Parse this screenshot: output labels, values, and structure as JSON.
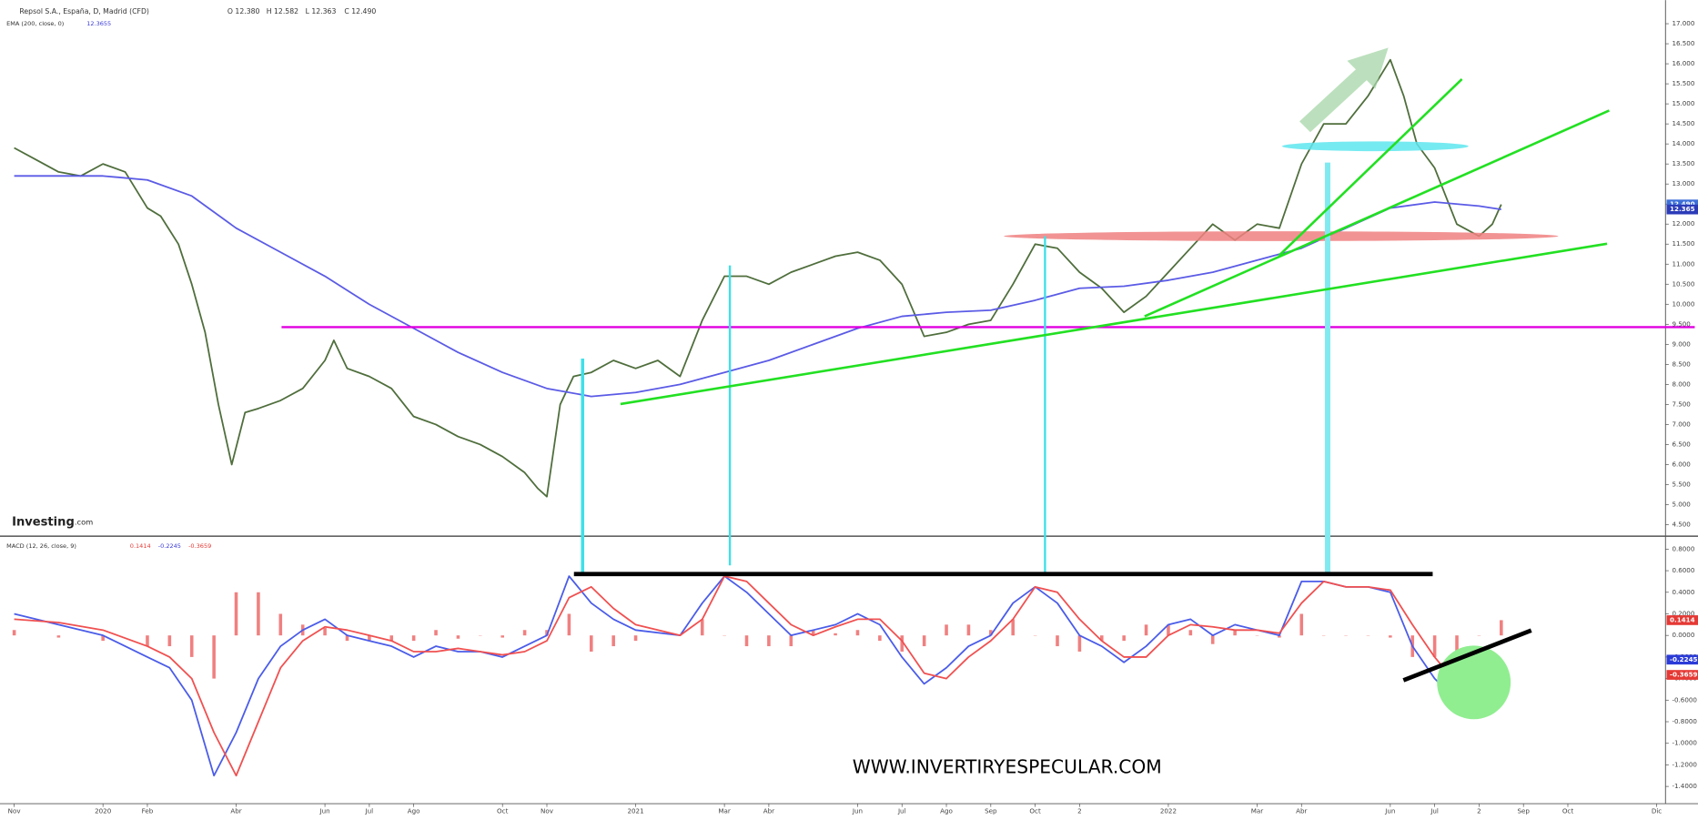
{
  "header": {
    "title": "Repsol S.A., España, D, Madrid (CFD)",
    "ohlc": [
      "O 12.380",
      "H 12.582",
      "L 12.363",
      "C 12.490"
    ],
    "ema_label": "EMA (200, close, 0)",
    "ema_value": "12.3655",
    "macd_label": "MACD (12, 26, close, 9)",
    "macd_values": [
      "0.1414",
      "-0.2245",
      "-0.3659"
    ]
  },
  "logo": [
    "Investing",
    ".com"
  ],
  "watermark": "WWW.INVERTIRYESPECULAR.COM",
  "chart_data": [
    {
      "type": "line",
      "xlim": [
        -0.32,
        37.2
      ],
      "ylim": [
        4.24,
        17.59
      ],
      "yticks": [
        {
          "value": 4.5,
          "label": "4.500"
        },
        {
          "value": 5,
          "label": "5.000"
        },
        {
          "value": 5.5,
          "label": "5.500"
        },
        {
          "value": 6,
          "label": "6.000"
        },
        {
          "value": 6.5,
          "label": "6.500"
        },
        {
          "value": 7,
          "label": "7.000"
        },
        {
          "value": 7.5,
          "label": "7.500"
        },
        {
          "value": 8,
          "label": "8.000"
        },
        {
          "value": 8.5,
          "label": "8.500"
        },
        {
          "value": 9,
          "label": "9.000"
        },
        {
          "value": 9.5,
          "label": "9.500"
        },
        {
          "value": 10,
          "label": "10.000"
        },
        {
          "value": 10.5,
          "label": "10.500"
        },
        {
          "value": 11,
          "label": "11.000"
        },
        {
          "value": 11.5,
          "label": "11.500"
        },
        {
          "value": 12,
          "label": "12.000"
        },
        {
          "value": 12.5,
          "label": "12.500"
        },
        {
          "value": 13,
          "label": "13.000"
        },
        {
          "value": 13.5,
          "label": "13.500"
        },
        {
          "value": 14,
          "label": "14.000"
        },
        {
          "value": 14.5,
          "label": "14.500"
        },
        {
          "value": 15,
          "label": "15.000"
        },
        {
          "value": 15.5,
          "label": "15.500"
        },
        {
          "value": 16,
          "label": "16.000"
        },
        {
          "value": 16.5,
          "label": "16.500"
        },
        {
          "value": 17,
          "label": "17.000"
        }
      ],
      "series": [
        {
          "color": "#4f6e3c",
          "badge_color": "#3d6fd8",
          "last_label": "12.490",
          "x": [
            0,
            0.5,
            1,
            1.5,
            2,
            2.5,
            3,
            3.3,
            3.7,
            4,
            4.3,
            4.6,
            4.9,
            5.2,
            5.5,
            6,
            6.5,
            7,
            7.2,
            7.5,
            8,
            8.5,
            9,
            9.5,
            10,
            10.5,
            11,
            11.5,
            11.8,
            12,
            12.3,
            12.6,
            13,
            13.5,
            14,
            14.5,
            15,
            15.5,
            16,
            16.5,
            17,
            17.5,
            18,
            18.5,
            19,
            19.5,
            20,
            20.5,
            21,
            21.5,
            22,
            22.5,
            23,
            23.5,
            24,
            24.5,
            25,
            25.5,
            26,
            26.5,
            27,
            27.5,
            28,
            28.5,
            29,
            29.5,
            30,
            30.5,
            31,
            31.3,
            31.6,
            32,
            32.5,
            33,
            33.3,
            33.5
          ],
          "values": [
            13.9,
            13.6,
            13.3,
            13.2,
            13.5,
            13.3,
            12.4,
            12.2,
            11.5,
            10.5,
            9.3,
            7.5,
            6.0,
            7.3,
            7.4,
            7.6,
            7.9,
            8.6,
            9.1,
            8.4,
            8.2,
            7.9,
            7.2,
            7.0,
            6.7,
            6.5,
            6.2,
            5.8,
            5.4,
            5.2,
            7.5,
            8.2,
            8.3,
            8.6,
            8.4,
            8.6,
            8.2,
            9.6,
            10.7,
            10.7,
            10.5,
            10.8,
            11.0,
            11.2,
            11.3,
            11.1,
            10.5,
            9.2,
            9.3,
            9.5,
            9.6,
            10.5,
            11.5,
            11.4,
            10.8,
            10.4,
            9.8,
            10.2,
            10.8,
            11.4,
            12.0,
            11.6,
            12.0,
            11.9,
            13.5,
            14.5,
            14.5,
            15.2,
            16.1,
            15.2,
            14.0,
            13.4,
            12.0,
            11.7,
            12.0,
            12.49
          ]
        },
        {
          "color": "#5b5be6",
          "badge_color": "#2b3bb8",
          "last_label": "12.365",
          "x": [
            0,
            2,
            3,
            4,
            5,
            6,
            7,
            8,
            9,
            10,
            11,
            12,
            13,
            14,
            15,
            16,
            17,
            18,
            19,
            20,
            21,
            22,
            23,
            24,
            25,
            26,
            27,
            28,
            29,
            30,
            31,
            32,
            33,
            33.5
          ],
          "values": [
            13.2,
            13.2,
            13.1,
            12.7,
            11.9,
            11.3,
            10.7,
            10.0,
            9.4,
            8.8,
            8.3,
            7.9,
            7.7,
            7.8,
            8.0,
            8.3,
            8.6,
            9.0,
            9.4,
            9.7,
            9.8,
            9.85,
            10.1,
            10.4,
            10.45,
            10.6,
            10.8,
            11.1,
            11.4,
            11.9,
            12.4,
            12.55,
            12.45,
            12.365
          ]
        }
      ]
    },
    {
      "type": "line",
      "xlim": [
        -0.32,
        37.2
      ],
      "ylim": [
        -1.56,
        0.91
      ],
      "yticks": [
        {
          "value": 0.8,
          "label": "0.8000"
        },
        {
          "value": 0.6,
          "label": "0.6000"
        },
        {
          "value": 0.4,
          "label": "0.4000"
        },
        {
          "value": 0.2,
          "label": "0.2000"
        },
        {
          "value": 0,
          "label": "0.0000"
        },
        {
          "value": -0.2,
          "label": "-0.2000"
        },
        {
          "value": -0.4,
          "label": "-0.4000"
        },
        {
          "value": -0.6,
          "label": "-0.6000"
        },
        {
          "value": -0.8,
          "label": "-0.8000"
        },
        {
          "value": -1,
          "label": "-1.0000"
        },
        {
          "value": -1.2,
          "label": "-1.2000"
        },
        {
          "value": -1.4,
          "label": "-1.4000"
        }
      ],
      "xticks": [
        {
          "value": 0,
          "label": "Nov"
        },
        {
          "value": 2,
          "label": "2020"
        },
        {
          "value": 3,
          "label": "Feb"
        },
        {
          "value": 5,
          "label": "Abr"
        },
        {
          "value": 7,
          "label": "Jun"
        },
        {
          "value": 8,
          "label": "Jul"
        },
        {
          "value": 9,
          "label": "Ago"
        },
        {
          "value": 11,
          "label": "Oct"
        },
        {
          "value": 12,
          "label": "Nov"
        },
        {
          "value": 14,
          "label": "2021"
        },
        {
          "value": 16,
          "label": "Mar"
        },
        {
          "value": 17,
          "label": "Abr"
        },
        {
          "value": 19,
          "label": "Jun"
        },
        {
          "value": 20,
          "label": "Jul"
        },
        {
          "value": 21,
          "label": "Ago"
        },
        {
          "value": 22,
          "label": "Sep"
        },
        {
          "value": 23,
          "label": "Oct"
        },
        {
          "value": 24,
          "label": "2"
        },
        {
          "value": 26,
          "label": "2022"
        },
        {
          "value": 28,
          "label": "Mar"
        },
        {
          "value": 29,
          "label": "Abr"
        },
        {
          "value": 31,
          "label": "Jun"
        },
        {
          "value": 32,
          "label": "Jul"
        },
        {
          "value": 33,
          "label": "2"
        },
        {
          "value": 34,
          "label": "Sep"
        },
        {
          "value": 35,
          "label": "Oct"
        },
        {
          "value": 37,
          "label": "Dic"
        }
      ],
      "x": [
        0,
        1,
        2,
        3,
        3.5,
        4,
        4.5,
        5,
        5.5,
        6,
        6.5,
        7,
        7.5,
        8,
        8.5,
        9,
        9.5,
        10,
        10.5,
        11,
        11.5,
        12,
        12.5,
        13,
        13.5,
        14,
        15,
        15.5,
        16,
        16.5,
        17,
        17.5,
        18,
        18.5,
        19,
        19.5,
        20,
        20.5,
        21,
        21.5,
        22,
        22.5,
        23,
        23.5,
        24,
        24.5,
        25,
        25.5,
        26,
        26.5,
        27,
        27.5,
        28,
        28.5,
        29,
        29.5,
        30,
        30.5,
        31,
        31.5,
        32,
        32.5,
        33,
        33.5
      ],
      "series": [
        {
          "style": "bar",
          "color": "#f08080",
          "badge_color": "#e53935",
          "last_label": "0.1414",
          "values": [
            0.05,
            -0.02,
            -0.05,
            -0.1,
            -0.1,
            -0.2,
            -0.4,
            0.4,
            0.4,
            0.2,
            0.1,
            0.07,
            -0.05,
            -0.05,
            -0.05,
            -0.05,
            0.05,
            -0.03,
            0,
            -0.02,
            0.05,
            0.05,
            0.2,
            -0.15,
            -0.1,
            -0.05,
            0,
            0.15,
            0,
            -0.1,
            -0.1,
            -0.1,
            0.05,
            0.02,
            0.05,
            -0.05,
            -0.15,
            -0.1,
            0.1,
            0.1,
            0.05,
            0.15,
            0,
            -0.1,
            -0.15,
            -0.05,
            -0.05,
            0.1,
            0.1,
            0.05,
            -0.08,
            0.05,
            0,
            -0.02,
            0.2,
            0,
            0,
            0,
            -0.02,
            -0.2,
            -0.2,
            -0.15,
            0,
            0.1414
          ]
        },
        {
          "style": "line",
          "color": "#4a5ce8",
          "badge_color": "#2b3bd8",
          "last_label": "-0.2245",
          "values": [
            0.2,
            0.1,
            0.0,
            -0.2,
            -0.3,
            -0.6,
            -1.3,
            -0.9,
            -0.4,
            -0.1,
            0.05,
            0.15,
            0.0,
            -0.05,
            -0.1,
            -0.2,
            -0.1,
            -0.15,
            -0.15,
            -0.2,
            -0.1,
            0.0,
            0.55,
            0.3,
            0.15,
            0.05,
            0.0,
            0.3,
            0.55,
            0.4,
            0.2,
            0.0,
            0.05,
            0.1,
            0.2,
            0.1,
            -0.2,
            -0.45,
            -0.3,
            -0.1,
            0.0,
            0.3,
            0.45,
            0.3,
            0.0,
            -0.1,
            -0.25,
            -0.1,
            0.1,
            0.15,
            0.0,
            0.1,
            0.05,
            0.0,
            0.5,
            0.5,
            0.45,
            0.45,
            0.4,
            -0.1,
            -0.4,
            -0.6,
            -0.5,
            -0.2245
          ]
        },
        {
          "style": "line",
          "color": "#f05050",
          "badge_color": "#e53935",
          "last_label": "-0.3659",
          "values": [
            0.15,
            0.12,
            0.05,
            -0.1,
            -0.2,
            -0.4,
            -0.9,
            -1.3,
            -0.8,
            -0.3,
            -0.05,
            0.08,
            0.05,
            0.0,
            -0.05,
            -0.15,
            -0.15,
            -0.12,
            -0.15,
            -0.18,
            -0.15,
            -0.05,
            0.35,
            0.45,
            0.25,
            0.1,
            0.0,
            0.15,
            0.55,
            0.5,
            0.3,
            0.1,
            0.0,
            0.08,
            0.15,
            0.15,
            -0.05,
            -0.35,
            -0.4,
            -0.2,
            -0.05,
            0.15,
            0.45,
            0.4,
            0.15,
            -0.05,
            -0.2,
            -0.2,
            0.0,
            0.1,
            0.08,
            0.05,
            0.05,
            0.02,
            0.3,
            0.5,
            0.45,
            0.45,
            0.42,
            0.1,
            -0.2,
            -0.45,
            -0.5,
            -0.3659
          ]
        }
      ]
    }
  ]
}
